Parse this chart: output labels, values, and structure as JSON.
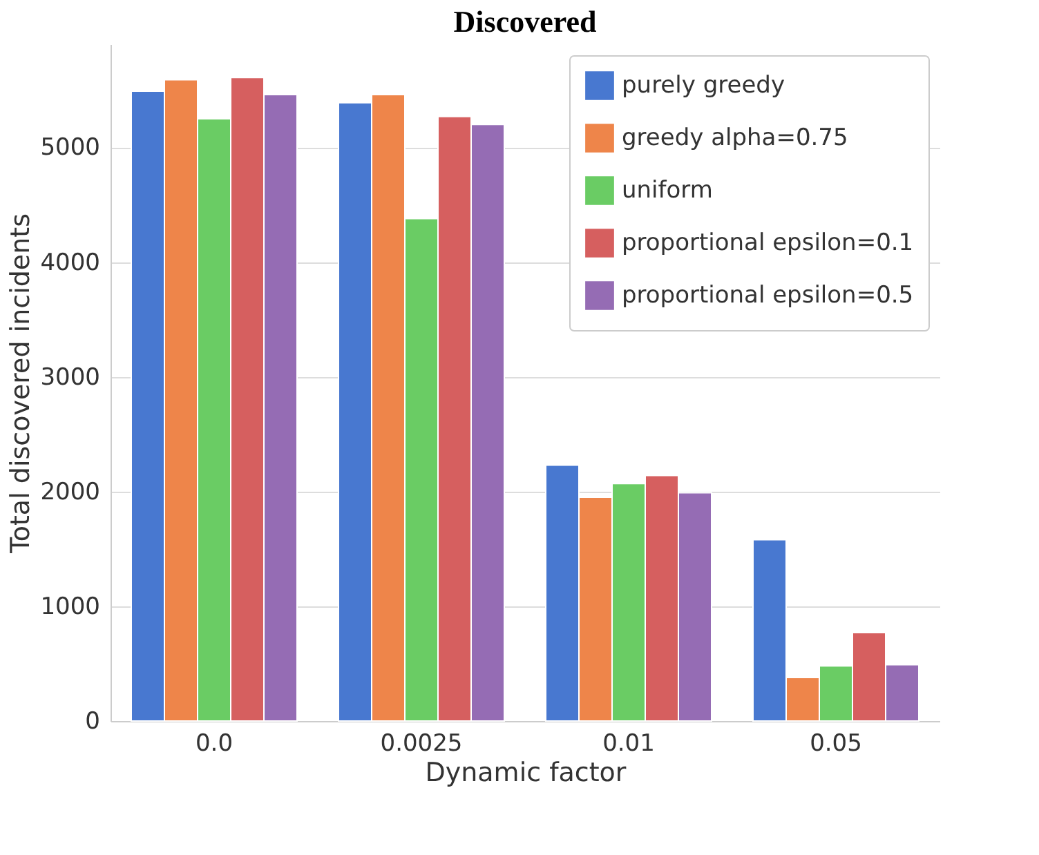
{
  "chart_data": {
    "type": "bar",
    "title": "Discovered",
    "xlabel": "Dynamic factor",
    "ylabel": "Total discovered incidents",
    "categories": [
      "0.0",
      "0.0025",
      "0.01",
      "0.05"
    ],
    "series": [
      {
        "name": "purely greedy",
        "color": "#4878d0",
        "values": [
          5490,
          5390,
          2230,
          1580
        ]
      },
      {
        "name": "greedy alpha=0.75",
        "color": "#ee854a",
        "values": [
          5590,
          5460,
          1950,
          380
        ]
      },
      {
        "name": "uniform",
        "color": "#6acc64",
        "values": [
          5250,
          4380,
          2070,
          480
        ]
      },
      {
        "name": "proportional epsilon=0.1",
        "color": "#d65f5f",
        "values": [
          5610,
          5270,
          2140,
          770
        ]
      },
      {
        "name": "proportional epsilon=0.5",
        "color": "#956cb4",
        "values": [
          5460,
          5200,
          1990,
          490
        ]
      }
    ],
    "ylim": [
      0,
      5900
    ],
    "yticks": [
      0,
      1000,
      2000,
      3000,
      4000,
      5000
    ],
    "grid": "y",
    "legend": "top right"
  }
}
